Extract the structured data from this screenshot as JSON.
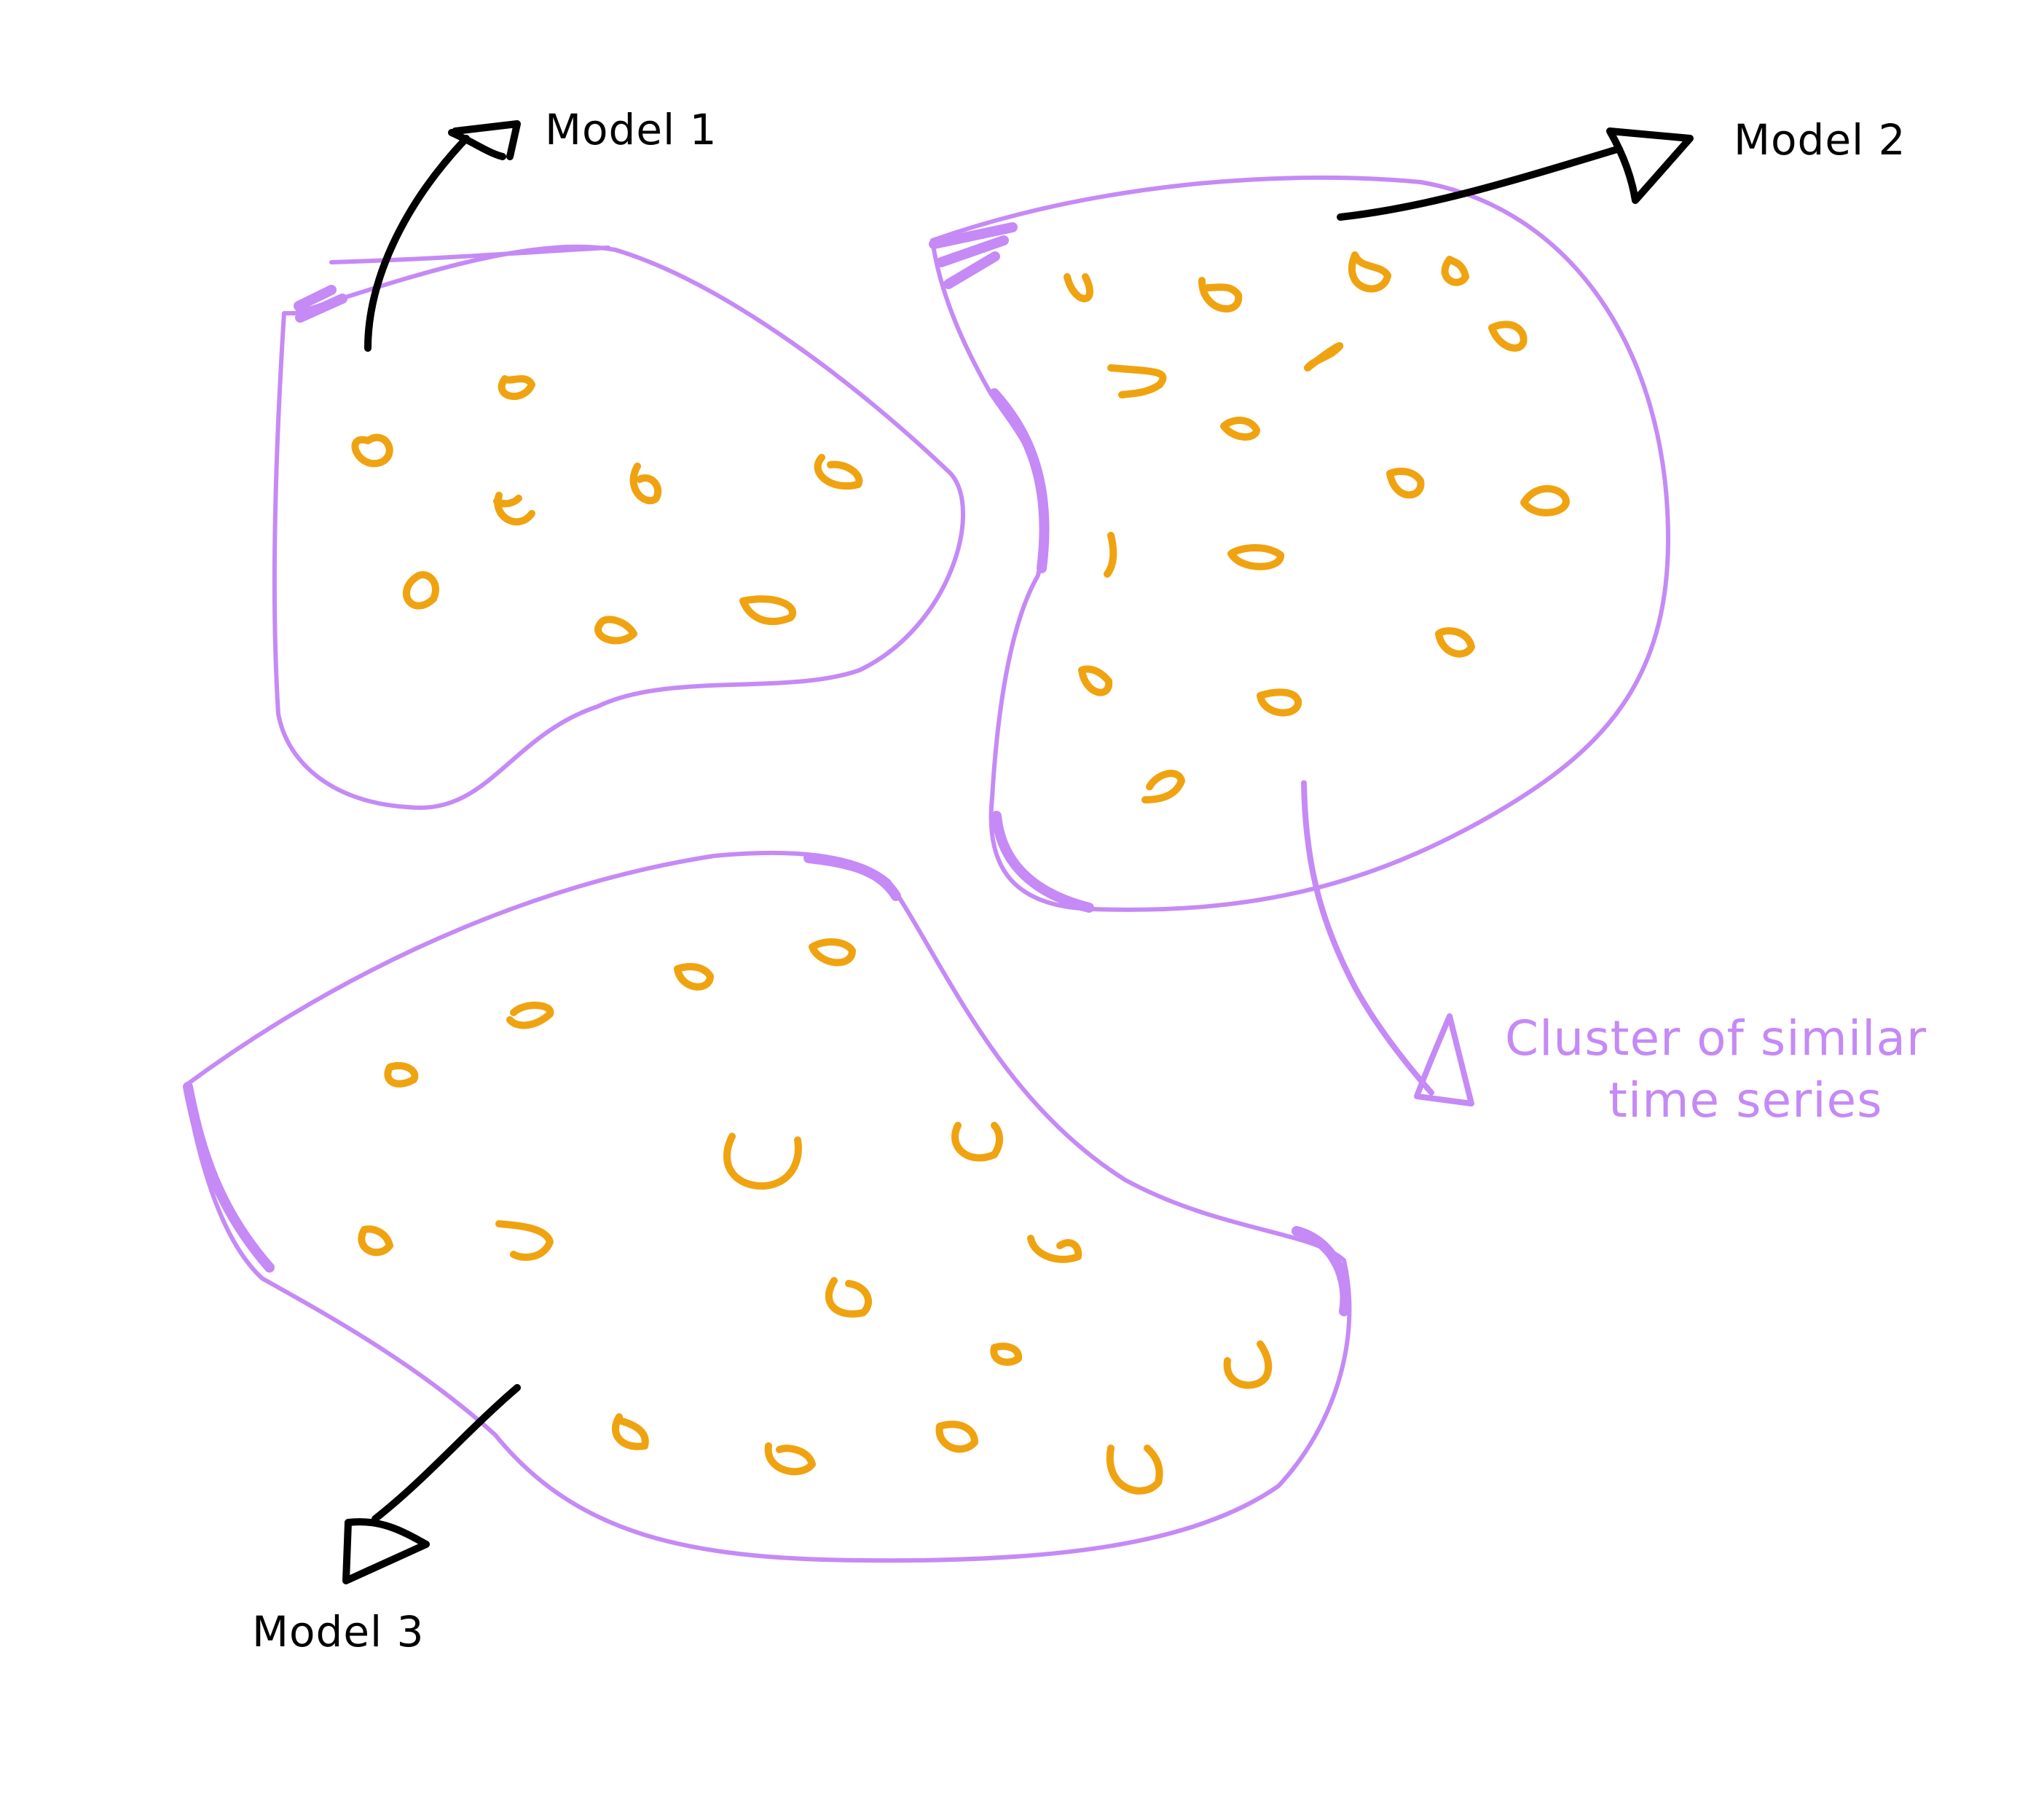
{
  "labels": {
    "model_1": "Model 1",
    "model_2": "Model 2",
    "model_3": "Model 3",
    "cluster_note_line1": "Cluster of similar",
    "cluster_note_line2": "time series"
  },
  "colors": {
    "cluster_outline": "#c58af5",
    "time_series_marker": "#f0a310",
    "arrow": "#000000",
    "background": "#ffffff"
  },
  "icons": {
    "cluster": "blob-outline",
    "time_series": "loop-marker",
    "pointer": "hand-drawn-arrow"
  }
}
